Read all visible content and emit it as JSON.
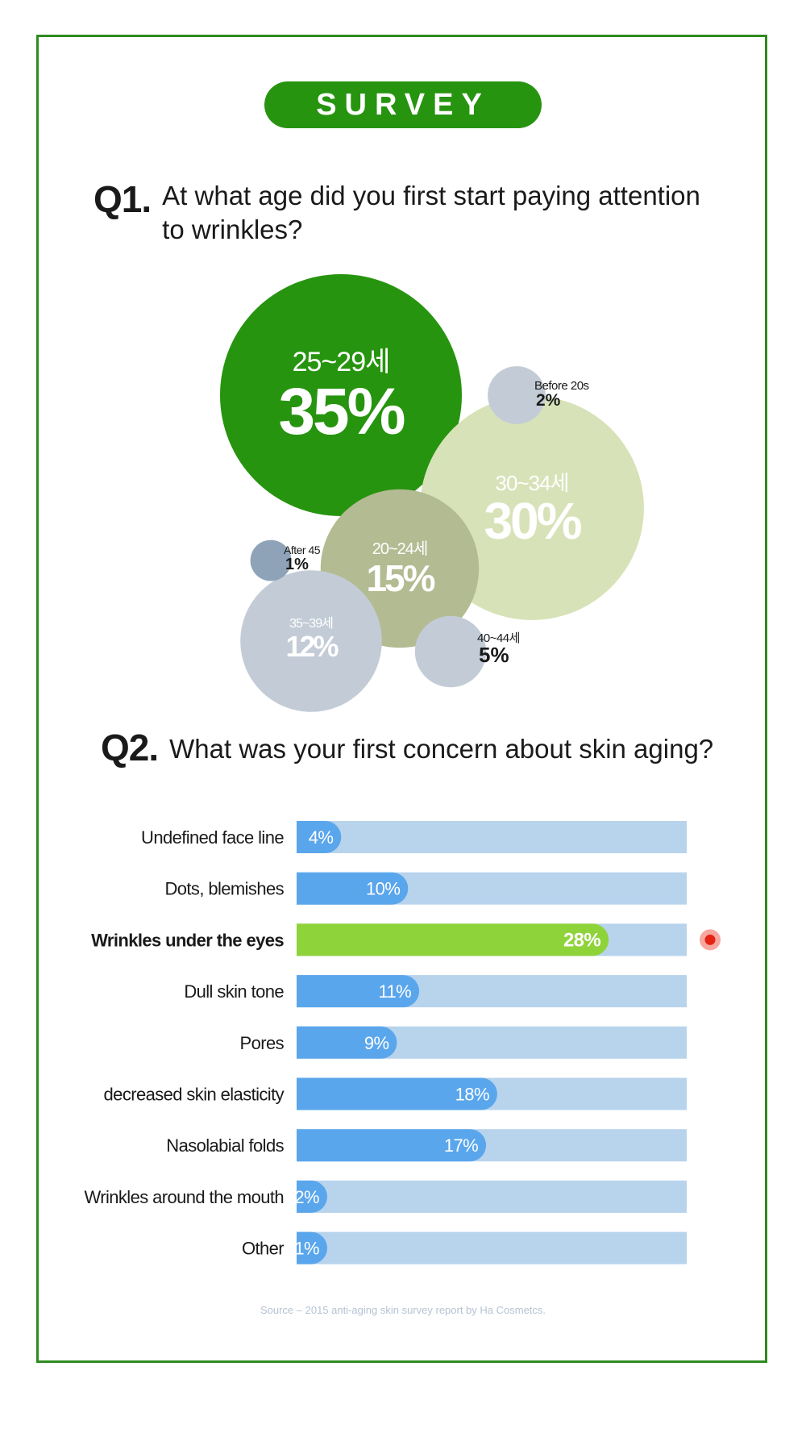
{
  "badge": "SURVEY",
  "q1": {
    "number": "Q1.",
    "question": "At what age did you first start paying attention to wrinkles?",
    "question_line1": "At what age did you first start paying attention",
    "question_line2": "to wrinkles?"
  },
  "q2": {
    "number": "Q2.",
    "question": "What was your first concern about skin aging?"
  },
  "source": "Source – 2015 anti-aging skin survey report by Ha Cosmetcs.",
  "colors": {
    "frame": "#2e8b1f",
    "badge": "#27940f",
    "bubble_top": "#27940f",
    "bubble_30_34": "#d8e2b8",
    "bubble_20_24": "#b3bb92",
    "bubble_grey": "#c3ccd6",
    "bubble_small": "#8fa3b8",
    "bar_track": "#b8d3ec",
    "bar_fill": "#5aa6ec",
    "bar_highlight": "#8fd33a",
    "marker_outer": "#f6a79f",
    "marker_inner": "#e42313"
  },
  "chart_data": [
    {
      "type": "bubble",
      "title": "At what age did you first start paying attention to wrinkles?",
      "unit": "%",
      "points": [
        {
          "label": "25~29세",
          "value": 35
        },
        {
          "label": "30~34세",
          "value": 30
        },
        {
          "label": "20~24세",
          "value": 15
        },
        {
          "label": "35~39세",
          "value": 12
        },
        {
          "label": "40~44세",
          "value": 5
        },
        {
          "label": "Before 20s",
          "value": 2
        },
        {
          "label": "After 45",
          "value": 1
        }
      ]
    },
    {
      "type": "bar",
      "orientation": "horizontal",
      "title": "What was your first concern about skin aging?",
      "unit": "%",
      "xlim": [
        0,
        35
      ],
      "highlight": "Wrinkles under the eyes",
      "categories": [
        "Undefined face line",
        "Dots, blemishes",
        "Wrinkles under the eyes",
        "Dull skin tone",
        "Pores",
        "decreased skin elasticity",
        "Nasolabial folds",
        "Wrinkles around the mouth",
        "Other"
      ],
      "values": [
        4,
        10,
        28,
        11,
        9,
        18,
        17,
        2,
        1
      ]
    }
  ]
}
